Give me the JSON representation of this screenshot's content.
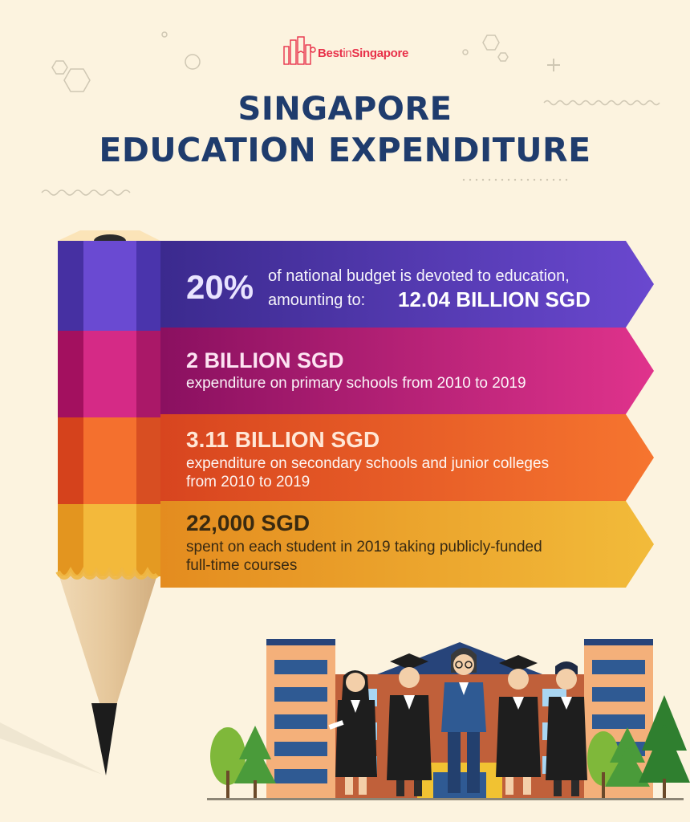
{
  "brand": {
    "logo_icon": "city-skyline-icon",
    "name_part1": "Best",
    "name_part2": "in",
    "name_part3": "Singapore"
  },
  "title": {
    "line1": "SINGAPORE",
    "line2": "EDUCATION EXPENDITURE"
  },
  "stats": [
    {
      "highlight": "20%",
      "text_line1": "of national budget is devoted to education,",
      "text_line2": "amounting to:",
      "amount": "12.04 BILLION SGD",
      "color": "#5a3bb5"
    },
    {
      "headline": "2 BILLION SGD",
      "description": "expenditure on primary schools from 2010 to 2019",
      "color": "#b5197a"
    },
    {
      "headline": "3.11 BILLION SGD",
      "description_line1": "expenditure on secondary schools and junior colleges",
      "description_line2": "from 2010 to 2019",
      "color": "#ea5a2a"
    },
    {
      "headline": "22,000 SGD",
      "description_line1": "spent on each student in 2019 taking publicly-funded",
      "description_line2": "full-time courses",
      "color": "#eaa12a"
    }
  ],
  "illustration": {
    "icon": "graduates-and-school-building-illustration"
  }
}
